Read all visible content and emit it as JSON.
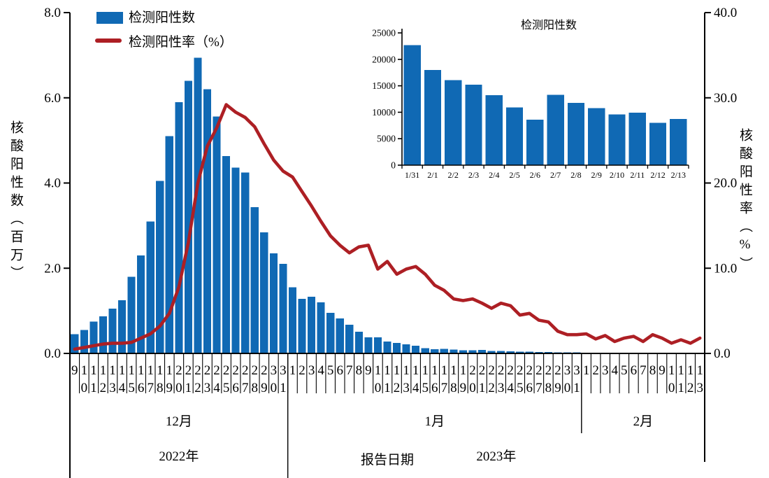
{
  "colors": {
    "bar": "#1069B4",
    "line": "#AD1F24",
    "axis": "#000000",
    "background": "#FFFFFF"
  },
  "legend": {
    "bar_label": "检测阳性数",
    "line_label": "检测阳性率（%）"
  },
  "axes": {
    "left_title": "核酸阳性数（百万）",
    "right_title": "核酸阳性率（%）",
    "x_title": "报告日期",
    "left_ticks": [
      "0.0",
      "2.0",
      "4.0",
      "6.0",
      "8.0"
    ],
    "right_ticks": [
      "0.0",
      "10.0",
      "20.0",
      "30.0",
      "40.0"
    ]
  },
  "sections": [
    {
      "month_label": "12月",
      "days": [
        "9",
        "10",
        "11",
        "12",
        "13",
        "14",
        "15",
        "16",
        "17",
        "18",
        "19",
        "20",
        "21",
        "22",
        "23",
        "24",
        "25",
        "26",
        "27",
        "28",
        "29",
        "30",
        "31"
      ]
    },
    {
      "month_label": "1月",
      "days": [
        "1",
        "2",
        "3",
        "4",
        "5",
        "6",
        "7",
        "8",
        "9",
        "10",
        "11",
        "12",
        "13",
        "14",
        "15",
        "16",
        "17",
        "18",
        "19",
        "20",
        "21",
        "22",
        "23",
        "24",
        "25",
        "26",
        "27",
        "28",
        "29",
        "30",
        "31"
      ]
    },
    {
      "month_label": "2月",
      "days": [
        "1",
        "2",
        "3",
        "4",
        "5",
        "6",
        "7",
        "8",
        "9",
        "10",
        "11",
        "12",
        "13"
      ]
    }
  ],
  "years": [
    {
      "label": "2022年",
      "start_day_index": 0,
      "end_day_index": 22
    },
    {
      "label": "2023年",
      "start_day_index": 23,
      "end_day_index": 66
    }
  ],
  "chart_data": [
    {
      "name": "main-chart",
      "type": "bar+line",
      "xlabel": "报告日期",
      "ylabel_left": "核酸阳性数（百万）",
      "ylabel_right": "核酸阳性率（%）",
      "ylim_left": [
        0,
        8
      ],
      "ylim_right": [
        0,
        40
      ],
      "x_date_range": "2022-12-09 to 2023-02-13",
      "bar_series": {
        "name": "检测阳性数",
        "unit": "百万",
        "values": [
          0.45,
          0.55,
          0.75,
          0.87,
          1.05,
          1.25,
          1.8,
          2.3,
          3.1,
          4.05,
          5.1,
          5.9,
          6.4,
          6.94,
          6.2,
          5.56,
          4.63,
          4.36,
          4.25,
          3.43,
          2.84,
          2.35,
          2.1,
          1.55,
          1.28,
          1.33,
          1.2,
          0.95,
          0.82,
          0.67,
          0.51,
          0.38,
          0.38,
          0.28,
          0.25,
          0.21,
          0.18,
          0.12,
          0.1,
          0.11,
          0.09,
          0.07,
          0.07,
          0.08,
          0.06,
          0.06,
          0.05,
          0.045,
          0.04,
          0.035,
          0.03,
          0.028,
          0.026,
          0.023,
          0.018,
          0.016,
          0.015,
          0.013,
          0.011,
          0.009,
          0.013,
          0.012,
          0.011,
          0.01,
          0.01,
          0.008,
          0.009
        ]
      },
      "line_series": {
        "name": "检测阳性率（%）",
        "unit": "%",
        "values": [
          0.5,
          0.7,
          0.9,
          1.1,
          1.2,
          1.2,
          1.3,
          1.8,
          2.3,
          3.2,
          4.7,
          7.8,
          13.0,
          20.0,
          24.3,
          26.5,
          29.2,
          28.3,
          27.7,
          26.6,
          24.6,
          22.7,
          21.4,
          20.7,
          19.0,
          17.3,
          15.5,
          13.8,
          12.7,
          11.8,
          12.5,
          12.7,
          9.9,
          10.8,
          9.3,
          9.9,
          10.2,
          9.3,
          8.0,
          7.4,
          6.4,
          6.2,
          6.4,
          5.9,
          5.3,
          5.9,
          5.6,
          4.5,
          4.7,
          3.9,
          3.7,
          2.6,
          2.2,
          2.2,
          2.3,
          1.7,
          2.1,
          1.4,
          1.8,
          2.0,
          1.4,
          2.2,
          1.8,
          1.2,
          1.6,
          1.2,
          1.8
        ]
      }
    },
    {
      "name": "inset-chart",
      "type": "bar",
      "title": "检测阳性数",
      "categories": [
        "1/31",
        "2/1",
        "2/2",
        "2/3",
        "2/4",
        "2/5",
        "2/6",
        "2/7",
        "2/8",
        "2/9",
        "2/10",
        "2/11",
        "2/12",
        "2/13"
      ],
      "values": [
        22700,
        18000,
        16100,
        15200,
        13200,
        10900,
        8600,
        13300,
        11800,
        10800,
        9600,
        9900,
        8000,
        8700
      ],
      "yticks": [
        "0",
        "5000",
        "10000",
        "15000",
        "20000",
        "25000"
      ],
      "ylim": [
        0,
        25000
      ]
    }
  ]
}
